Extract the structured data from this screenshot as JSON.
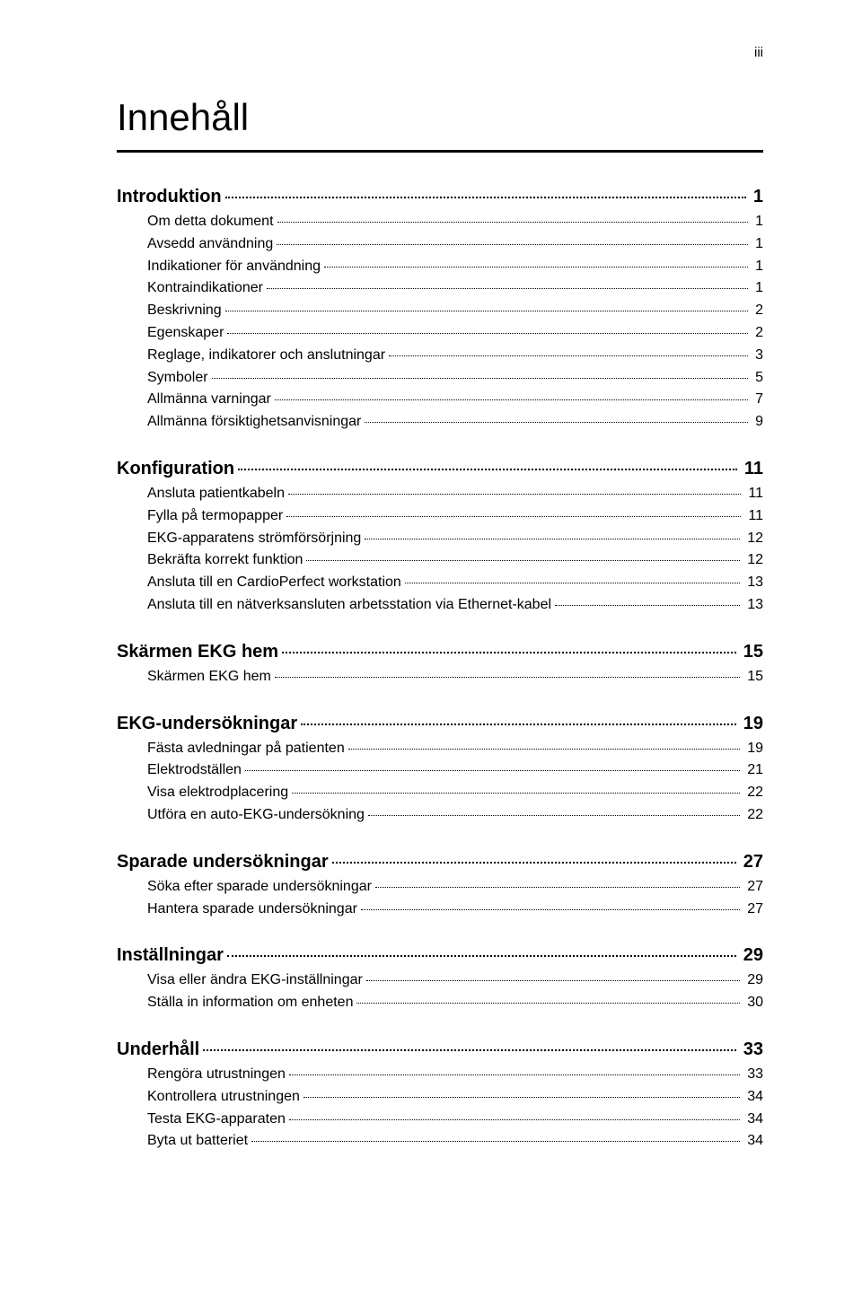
{
  "page_number_roman": "iii",
  "title": "Innehåll",
  "colors": {
    "text": "#000000",
    "background": "#ffffff",
    "rule": "#000000",
    "leader": "#000000"
  },
  "typography": {
    "title_fontsize_pt": 32,
    "section_fontsize_pt": 15,
    "sub_fontsize_pt": 12,
    "font_family": "Arial"
  },
  "toc": [
    {
      "title": "Introduktion",
      "page": "1",
      "items": [
        {
          "title": "Om detta dokument",
          "page": "1"
        },
        {
          "title": "Avsedd användning",
          "page": "1"
        },
        {
          "title": "Indikationer för användning",
          "page": "1"
        },
        {
          "title": "Kontraindikationer",
          "page": "1"
        },
        {
          "title": "Beskrivning",
          "page": "2"
        },
        {
          "title": "Egenskaper",
          "page": "2"
        },
        {
          "title": "Reglage, indikatorer och anslutningar",
          "page": "3"
        },
        {
          "title": "Symboler",
          "page": "5"
        },
        {
          "title": "Allmänna varningar",
          "page": "7"
        },
        {
          "title": "Allmänna försiktighetsanvisningar",
          "page": "9"
        }
      ]
    },
    {
      "title": "Konfiguration",
      "page": "11",
      "items": [
        {
          "title": "Ansluta patientkabeln",
          "page": "11"
        },
        {
          "title": "Fylla på termopapper",
          "page": "11"
        },
        {
          "title": "EKG-apparatens strömförsörjning",
          "page": "12"
        },
        {
          "title": "Bekräfta korrekt funktion",
          "page": "12"
        },
        {
          "title": "Ansluta till en CardioPerfect workstation",
          "page": "13"
        },
        {
          "title": "Ansluta till en nätverksansluten arbetsstation via Ethernet-kabel",
          "page": "13"
        }
      ]
    },
    {
      "title": "Skärmen EKG hem",
      "page": "15",
      "items": [
        {
          "title": "Skärmen EKG hem",
          "page": "15"
        }
      ]
    },
    {
      "title": "EKG-undersökningar",
      "page": "19",
      "items": [
        {
          "title": "Fästa avledningar på patienten",
          "page": "19"
        },
        {
          "title": "Elektrodställen",
          "page": "21"
        },
        {
          "title": "Visa elektrodplacering",
          "page": "22"
        },
        {
          "title": "Utföra en auto-EKG-undersökning",
          "page": "22"
        }
      ]
    },
    {
      "title": "Sparade undersökningar",
      "page": "27",
      "items": [
        {
          "title": "Söka efter sparade undersökningar",
          "page": "27"
        },
        {
          "title": "Hantera sparade undersökningar",
          "page": "27"
        }
      ]
    },
    {
      "title": "Inställningar",
      "page": "29",
      "items": [
        {
          "title": "Visa eller ändra EKG-inställningar",
          "page": "29"
        },
        {
          "title": "Ställa in information om enheten",
          "page": "30"
        }
      ]
    },
    {
      "title": "Underhåll",
      "page": "33",
      "items": [
        {
          "title": "Rengöra utrustningen",
          "page": "33"
        },
        {
          "title": "Kontrollera utrustningen",
          "page": "34"
        },
        {
          "title": "Testa EKG-apparaten",
          "page": "34"
        },
        {
          "title": "Byta ut batteriet",
          "page": "34"
        }
      ]
    }
  ]
}
